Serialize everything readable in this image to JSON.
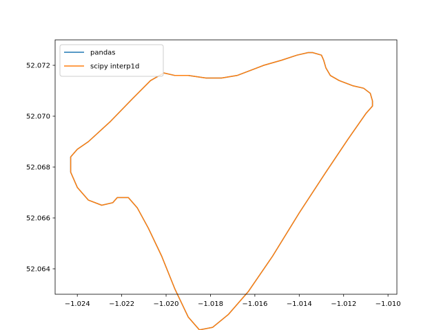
{
  "chart_data": {
    "type": "line",
    "title": "",
    "xlabel": "",
    "ylabel": "",
    "xlim": [
      -1.025,
      -1.0096
    ],
    "ylim": [
      52.063,
      52.073
    ],
    "grid": false,
    "legend": "upper-left",
    "xticks": [
      -1.024,
      -1.022,
      -1.02,
      -1.018,
      -1.016,
      -1.014,
      -1.012,
      -1.01
    ],
    "xtick_labels": [
      "−1.024",
      "−1.022",
      "−1.020",
      "−1.018",
      "−1.016",
      "−1.014",
      "−1.012",
      "−1.010"
    ],
    "yticks": [
      52.064,
      52.066,
      52.068,
      52.07,
      52.072
    ],
    "ytick_labels": [
      "52.064",
      "52.066",
      "52.068",
      "52.070",
      "52.072"
    ],
    "series": [
      {
        "name": "pandas",
        "color": "#1f77b4",
        "x": [
          -1.0134,
          -1.013,
          -1.0129,
          -1.0128,
          -1.0126,
          -1.0122,
          -1.0116,
          -1.0111,
          -1.0108,
          -1.0107,
          -1.0107,
          -1.011,
          -1.0118,
          -1.0128,
          -1.014,
          -1.0152,
          -1.0163,
          -1.0172,
          -1.0179,
          -1.0185,
          -1.019,
          -1.0196,
          -1.0202,
          -1.0208,
          -1.0213,
          -1.0217,
          -1.022,
          -1.0222,
          -1.0224,
          -1.0229,
          -1.0235,
          -1.024,
          -1.0243,
          -1.0243,
          -1.024,
          -1.0235,
          -1.0225,
          -1.0215,
          -1.0207,
          -1.0201,
          -1.0196,
          -1.019,
          -1.0182,
          -1.0175,
          -1.0168,
          -1.0162,
          -1.0156,
          -1.0148,
          -1.0141,
          -1.0136,
          -1.0134
        ],
        "y": [
          52.0725,
          52.0724,
          52.0722,
          52.0719,
          52.0716,
          52.0714,
          52.0712,
          52.0711,
          52.0709,
          52.0706,
          52.0704,
          52.0701,
          52.0691,
          52.0678,
          52.0662,
          52.0645,
          52.0631,
          52.0622,
          52.0617,
          52.0616,
          52.0621,
          52.0632,
          52.0645,
          52.0656,
          52.0664,
          52.0668,
          52.0668,
          52.0668,
          52.0666,
          52.0665,
          52.0667,
          52.0672,
          52.0678,
          52.0684,
          52.0687,
          52.069,
          52.0698,
          52.0707,
          52.0714,
          52.0717,
          52.0716,
          52.0716,
          52.0715,
          52.0715,
          52.0716,
          52.0718,
          52.072,
          52.0722,
          52.0724,
          52.0725,
          52.0725
        ]
      },
      {
        "name": "scipy interp1d",
        "color": "#ff7f0e",
        "x": [
          -1.0134,
          -1.013,
          -1.0129,
          -1.0128,
          -1.0126,
          -1.0122,
          -1.0116,
          -1.0111,
          -1.0108,
          -1.0107,
          -1.0107,
          -1.011,
          -1.0118,
          -1.0128,
          -1.014,
          -1.0152,
          -1.0163,
          -1.0172,
          -1.0179,
          -1.0185,
          -1.019,
          -1.0196,
          -1.0202,
          -1.0208,
          -1.0213,
          -1.0217,
          -1.022,
          -1.0222,
          -1.0224,
          -1.0229,
          -1.0235,
          -1.024,
          -1.0243,
          -1.0243,
          -1.024,
          -1.0235,
          -1.0225,
          -1.0215,
          -1.0207,
          -1.0201,
          -1.0196,
          -1.019,
          -1.0182,
          -1.0175,
          -1.0168,
          -1.0162,
          -1.0156,
          -1.0148,
          -1.0141,
          -1.0136,
          -1.0134
        ],
        "y": [
          52.0725,
          52.0724,
          52.0722,
          52.0719,
          52.0716,
          52.0714,
          52.0712,
          52.0711,
          52.0709,
          52.0706,
          52.0704,
          52.0701,
          52.0691,
          52.0678,
          52.0662,
          52.0645,
          52.0631,
          52.0622,
          52.0617,
          52.0616,
          52.0621,
          52.0632,
          52.0645,
          52.0656,
          52.0664,
          52.0668,
          52.0668,
          52.0668,
          52.0666,
          52.0665,
          52.0667,
          52.0672,
          52.0678,
          52.0684,
          52.0687,
          52.069,
          52.0698,
          52.0707,
          52.0714,
          52.0717,
          52.0716,
          52.0716,
          52.0715,
          52.0715,
          52.0716,
          52.0718,
          52.072,
          52.0722,
          52.0724,
          52.0725,
          52.0725
        ]
      }
    ]
  }
}
